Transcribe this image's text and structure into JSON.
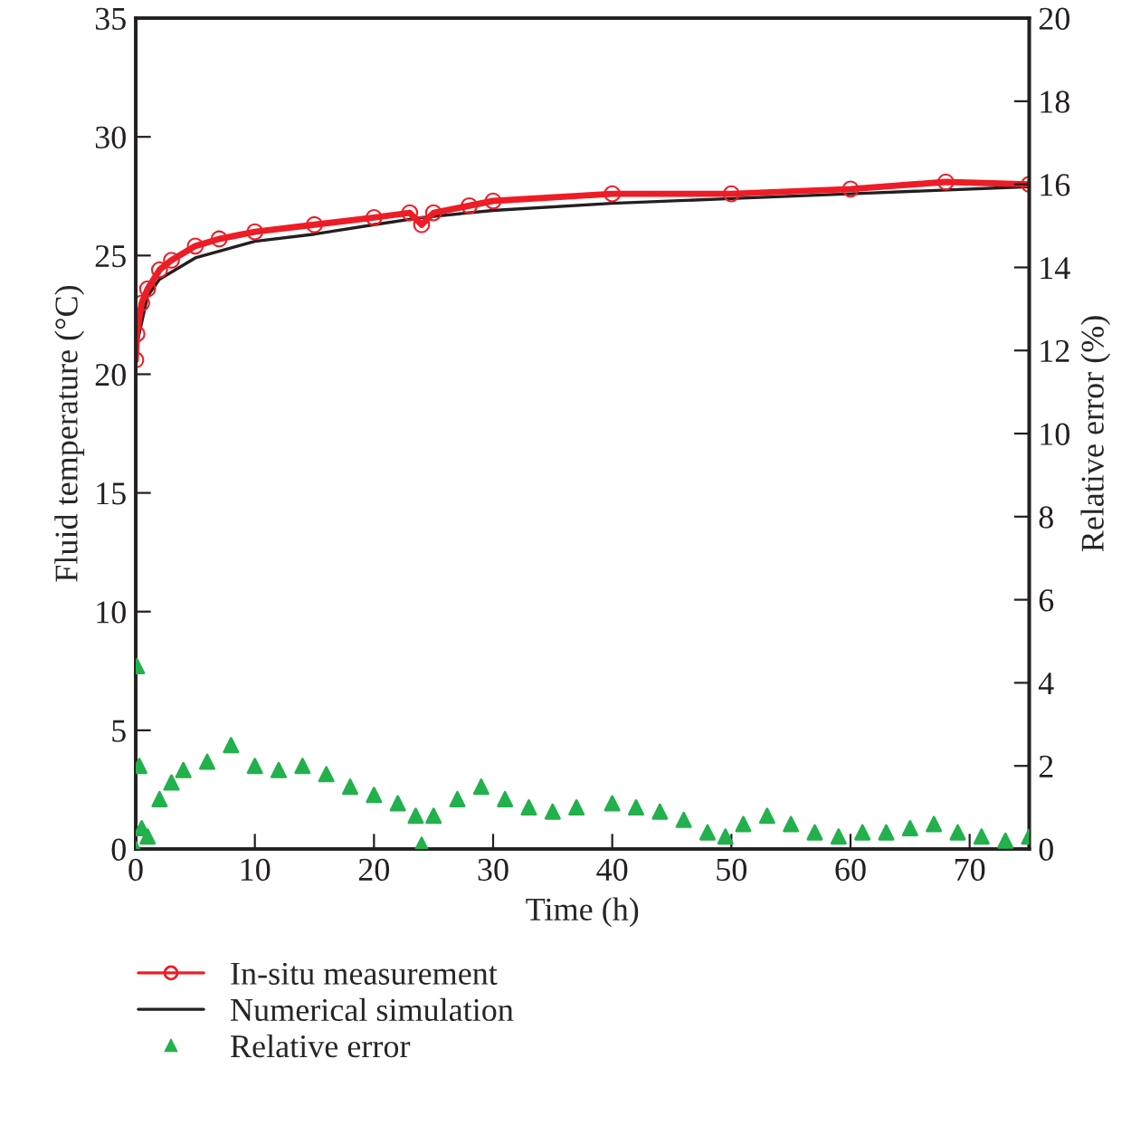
{
  "chart_data": {
    "type": "line",
    "xlabel": "Time (h)",
    "ylabel": "Fluid temperature (°C)",
    "y2label": "Relative error (%)",
    "xlim": [
      0,
      75
    ],
    "xticks": [
      0,
      10,
      20,
      30,
      40,
      50,
      60,
      70
    ],
    "ylim": [
      0,
      35
    ],
    "yticks": [
      0,
      5,
      10,
      15,
      20,
      25,
      30,
      35
    ],
    "y2lim": [
      0,
      20
    ],
    "y2ticks": [
      0,
      2,
      4,
      6,
      8,
      10,
      12,
      14,
      16,
      18,
      20
    ],
    "legend": "bottom",
    "grid": false,
    "series": [
      {
        "name": "In-situ measurement",
        "marker": "circle",
        "color": "#ee1c25",
        "x": [
          0,
          0.1,
          0.5,
          1,
          2,
          3,
          5,
          7,
          10,
          15,
          20,
          23,
          24,
          25,
          28,
          30,
          40,
          50,
          60,
          68,
          75
        ],
        "values": [
          20.6,
          21.7,
          23.0,
          23.6,
          24.4,
          24.8,
          25.4,
          25.7,
          26.0,
          26.3,
          26.6,
          26.8,
          26.3,
          26.8,
          27.1,
          27.3,
          27.6,
          27.6,
          27.8,
          28.1,
          28.0
        ]
      },
      {
        "name": "Numerical simulation",
        "marker": "none",
        "color": "#231f20",
        "x": [
          0.2,
          1,
          2,
          5,
          10,
          15,
          20,
          24,
          30,
          40,
          50,
          60,
          75
        ],
        "values": [
          21.5,
          23.3,
          24.0,
          24.9,
          25.6,
          25.9,
          26.3,
          26.6,
          26.9,
          27.2,
          27.4,
          27.6,
          27.9
        ]
      },
      {
        "name": "Relative error",
        "type": "scatter",
        "marker": "triangle",
        "axis": "y2",
        "color": "#22b14c",
        "x": [
          0,
          0.1,
          0.3,
          0.5,
          1,
          2,
          3,
          4,
          6,
          8,
          10,
          12,
          14,
          16,
          18,
          20,
          22,
          23.5,
          24,
          25,
          27,
          29,
          31,
          33,
          35,
          37,
          40,
          42,
          44,
          46,
          48,
          49.5,
          51,
          53,
          55,
          57,
          59,
          61,
          63,
          65,
          67,
          69,
          71,
          73,
          75
        ],
        "values": [
          0,
          4.4,
          2.0,
          0.5,
          0.3,
          1.2,
          1.6,
          1.9,
          2.1,
          2.5,
          2.0,
          1.9,
          2.0,
          1.8,
          1.5,
          1.3,
          1.1,
          0.8,
          0.1,
          0.8,
          1.2,
          1.5,
          1.2,
          1.0,
          0.9,
          1.0,
          1.1,
          1.0,
          0.9,
          0.7,
          0.4,
          0.3,
          0.6,
          0.8,
          0.6,
          0.4,
          0.3,
          0.4,
          0.4,
          0.5,
          0.6,
          0.4,
          0.3,
          0.2,
          0.3
        ]
      }
    ]
  }
}
